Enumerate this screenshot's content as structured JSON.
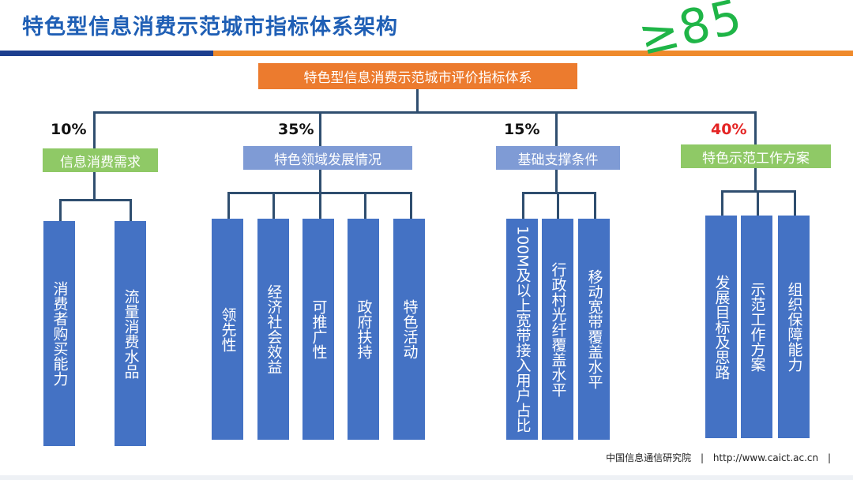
{
  "title": "特色型信息消费示范城市指标体系架构",
  "handwritten_note": "≥85",
  "root": "特色型信息消费示范城市评价指标体系",
  "categories": [
    {
      "weight": "10%",
      "label": "信息消费需求",
      "items": [
        "消费者购买能力",
        "流量消费水品"
      ]
    },
    {
      "weight": "35%",
      "label": "特色领域发展情况",
      "items": [
        "领先性",
        "经济社会效益",
        "可推广性",
        "政府扶持",
        "特色活动"
      ]
    },
    {
      "weight": "15%",
      "label": "基础支撑条件",
      "items": [
        "100M及以上宽带接入用户占比",
        "行政村光纤覆盖水平",
        "移动宽带覆盖水平"
      ]
    },
    {
      "weight": "40%",
      "label": "特色示范工作方案",
      "items": [
        "发展目标及思路",
        "示范工作方案",
        "组织保障能力"
      ]
    }
  ],
  "colors": {
    "root": "#ec7b2e",
    "category_green": "#8fc966",
    "category_blue": "#7f9bd5",
    "leaf": "#4472c4",
    "weight_highlight": "#e42424"
  },
  "footer": {
    "org": "中国信息通信研究院",
    "separator": "|",
    "url": "http://www.caict.ac.cn"
  }
}
